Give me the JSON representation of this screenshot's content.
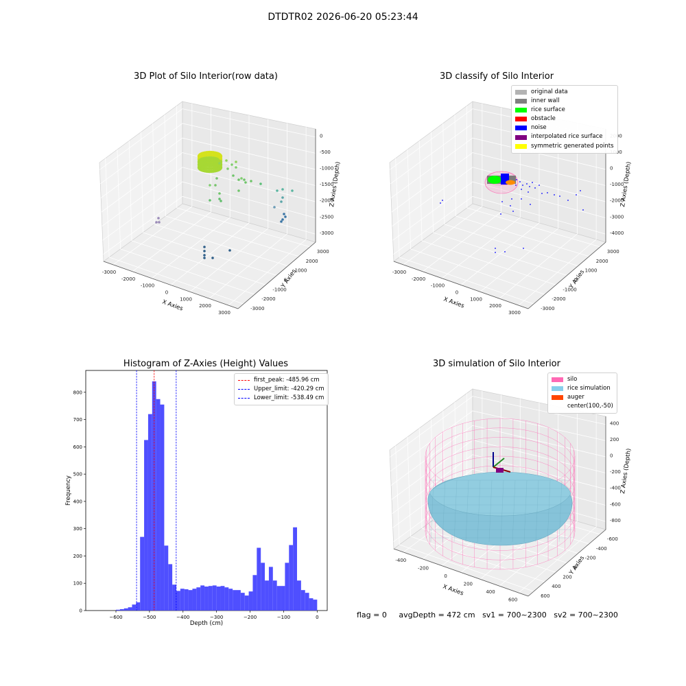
{
  "figure": {
    "title": "DTDTR02 2026-06-20 05:23:44"
  },
  "panels": {
    "raw": {
      "title": "3D Plot of Silo Interior(row data)",
      "xlabel": "X Axies",
      "ylabel": "Y Axies",
      "zlabel": "Z Axies (Depth)",
      "xticks": [
        "-3000",
        "-2000",
        "-1000",
        "0",
        "1000",
        "2000",
        "3000"
      ],
      "yticks": [
        "-3000",
        "-2000",
        "-1000",
        "0",
        "1000",
        "2000",
        "3000"
      ],
      "zticks": [
        "0",
        "-500",
        "-1000",
        "-1500",
        "-2000",
        "-2500",
        "-3000"
      ]
    },
    "classify": {
      "title": "3D classify of Silo Interior",
      "xlabel": "X Axies",
      "ylabel": "Y Axies",
      "zlabel": "Z Axies (Depth)",
      "xticks": [
        "-3000",
        "-2000",
        "-1000",
        "0",
        "1000",
        "2000",
        "3000"
      ],
      "yticks": [
        "-3000",
        "-2000",
        "-1000",
        "0",
        "1000",
        "2000",
        "3000"
      ],
      "zticks": [
        "2000",
        "1000",
        "0",
        "-1000",
        "-2000",
        "-3000",
        "-4000"
      ],
      "legend": [
        {
          "label": "original data",
          "color": "#b3b3b3"
        },
        {
          "label": "inner wall",
          "color": "#808080"
        },
        {
          "label": "rice surface",
          "color": "#00ff00"
        },
        {
          "label": "obstacle",
          "color": "#ff0000"
        },
        {
          "label": "noise",
          "color": "#0000ff"
        },
        {
          "label": "interpolated rice surface",
          "color": "#800080"
        },
        {
          "label": "symmetric generated points",
          "color": "#ffff00"
        }
      ]
    },
    "simulation": {
      "title": "3D simulation of Silo Interior",
      "xlabel": "X Axies",
      "ylabel": "Y Axies",
      "zlabel": "Z Axies (Depth)",
      "xticks": [
        "-400",
        "-200",
        "0",
        "200",
        "400",
        "600"
      ],
      "yticks": [
        "600",
        "400",
        "200",
        "0",
        "-200",
        "-400",
        "-600"
      ],
      "zticks": [
        "400",
        "200",
        "0",
        "-200",
        "-400",
        "-600",
        "-800"
      ],
      "legend": [
        {
          "label": "silo",
          "color": "#ff69b4"
        },
        {
          "label": "rice simulation",
          "color": "#87ceeb"
        },
        {
          "label": "auger",
          "color": "#ff4500"
        },
        {
          "label": "center(100,-50)",
          "color": ""
        }
      ]
    }
  },
  "chart_data": {
    "type": "bar",
    "title": "Histogram of Z-Axies (Height) Values",
    "xlabel": "Depth (cm)",
    "ylabel": "Frequency",
    "xlim": [
      -690,
      30
    ],
    "ylim": [
      0,
      880
    ],
    "xticks": [
      -600,
      -500,
      -400,
      -300,
      -200,
      -100,
      0
    ],
    "yticks": [
      0,
      100,
      200,
      300,
      400,
      500,
      600,
      700,
      800
    ],
    "bin_width": 12,
    "bins_start": [
      -600,
      -588,
      -576,
      -564,
      -552,
      -540,
      -528,
      -516,
      -504,
      -492,
      -480,
      -468,
      -456,
      -444,
      -432,
      -420,
      -408,
      -396,
      -384,
      -372,
      -360,
      -348,
      -336,
      -324,
      -312,
      -300,
      -288,
      -276,
      -264,
      -252,
      -240,
      -228,
      -216,
      -204,
      -192,
      -180,
      -168,
      -156,
      -144,
      -132,
      -120,
      -108,
      -96,
      -84,
      -72,
      -60,
      -48,
      -36,
      -24,
      -12
    ],
    "values": [
      3,
      5,
      8,
      12,
      22,
      30,
      270,
      625,
      720,
      840,
      775,
      755,
      238,
      170,
      95,
      72,
      80,
      78,
      75,
      80,
      85,
      92,
      88,
      90,
      92,
      88,
      90,
      85,
      80,
      75,
      75,
      65,
      55,
      70,
      130,
      230,
      175,
      110,
      160,
      110,
      90,
      90,
      175,
      240,
      305,
      110,
      75,
      65,
      45,
      40
    ],
    "bar_color": "#4b4bff",
    "lines": [
      {
        "label": "first_peak: -485.96 cm",
        "x": -485.96,
        "color": "#ff0000"
      },
      {
        "label": "Upper_limit: -420.29 cm",
        "x": -420.29,
        "color": "#0000ff"
      },
      {
        "label": "Lower_limit: -538.49 cm",
        "x": -538.49,
        "color": "#0000ff"
      }
    ],
    "legend_position": "top-right"
  },
  "footer": {
    "flag": "flag = 0",
    "avg": "avgDepth = 472 cm",
    "sv1": "sv1 = 700~2300",
    "sv2": "sv2 = 700~2300"
  }
}
